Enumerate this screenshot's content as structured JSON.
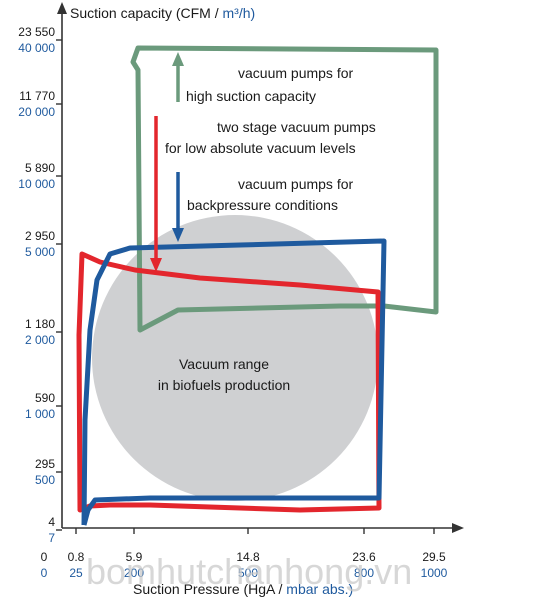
{
  "chart_data": {
    "type": "area",
    "y_axis": {
      "title": "Suction capacity (CFM",
      "title_sep": "/",
      "title_unit": "m³/h)",
      "ticks": [
        {
          "cfm": "23 550",
          "m3h": "40 000"
        },
        {
          "cfm": "11 770",
          "m3h": "20 000"
        },
        {
          "cfm": "5 890",
          "m3h": "10 000"
        },
        {
          "cfm": "2 950",
          "m3h": "5 000"
        },
        {
          "cfm": "1 180",
          "m3h": "2 000"
        },
        {
          "cfm": "590",
          "m3h": "1 000"
        },
        {
          "cfm": "295",
          "m3h": "500"
        },
        {
          "cfm": "4",
          "m3h": "7"
        }
      ]
    },
    "x_axis": {
      "title": "Suction Pressure",
      "title_unit_a": "(HgA",
      "title_sep": "/",
      "title_unit_b": "mbar abs.)",
      "ticks": [
        {
          "hga": "0",
          "mbar": "0"
        },
        {
          "hga": "0.8",
          "mbar": "25"
        },
        {
          "hga": "5.9",
          "mbar": "200"
        },
        {
          "hga": "14.8",
          "mbar": "500"
        },
        {
          "hga": "23.6",
          "mbar": "800"
        },
        {
          "hga": "29.5",
          "mbar": "1000"
        }
      ]
    },
    "regions": [
      {
        "name": "vacuum pumps for high suction capacity",
        "color": "#6b9a7c",
        "mbar_range": [
          200,
          1000
        ],
        "m3h_range": [
          2000,
          40000
        ]
      },
      {
        "name": "two stage vacuum pumps for low absolute vacuum levels",
        "color": "#e3262d",
        "mbar_range": [
          25,
          800
        ],
        "m3h_range": [
          7,
          5000
        ]
      },
      {
        "name": "vacuum pumps for backpressure conditions",
        "color": "#1f5a9e",
        "mbar_range": [
          25,
          800
        ],
        "m3h_range": [
          7,
          5000
        ]
      },
      {
        "name": "Vacuum range in biofuels production",
        "color": "#cfd0d2"
      }
    ],
    "annotations": {
      "green_line1": "vacuum pumps for",
      "green_line2": "high suction capacity",
      "red_line1": "two stage vacuum pumps",
      "red_line2": "for low absolute vacuum levels",
      "blue_line1": "vacuum pumps for",
      "blue_line2": "backpressure conditions",
      "circle_line1": "Vacuum range",
      "circle_line2": "in biofuels production"
    },
    "watermark": "bomhutchanhong.vn",
    "colors": {
      "green": "#6b9a7c",
      "red": "#e3262d",
      "blue": "#1f5a9e",
      "gray": "#cfd0d2",
      "axis": "#333333"
    }
  }
}
